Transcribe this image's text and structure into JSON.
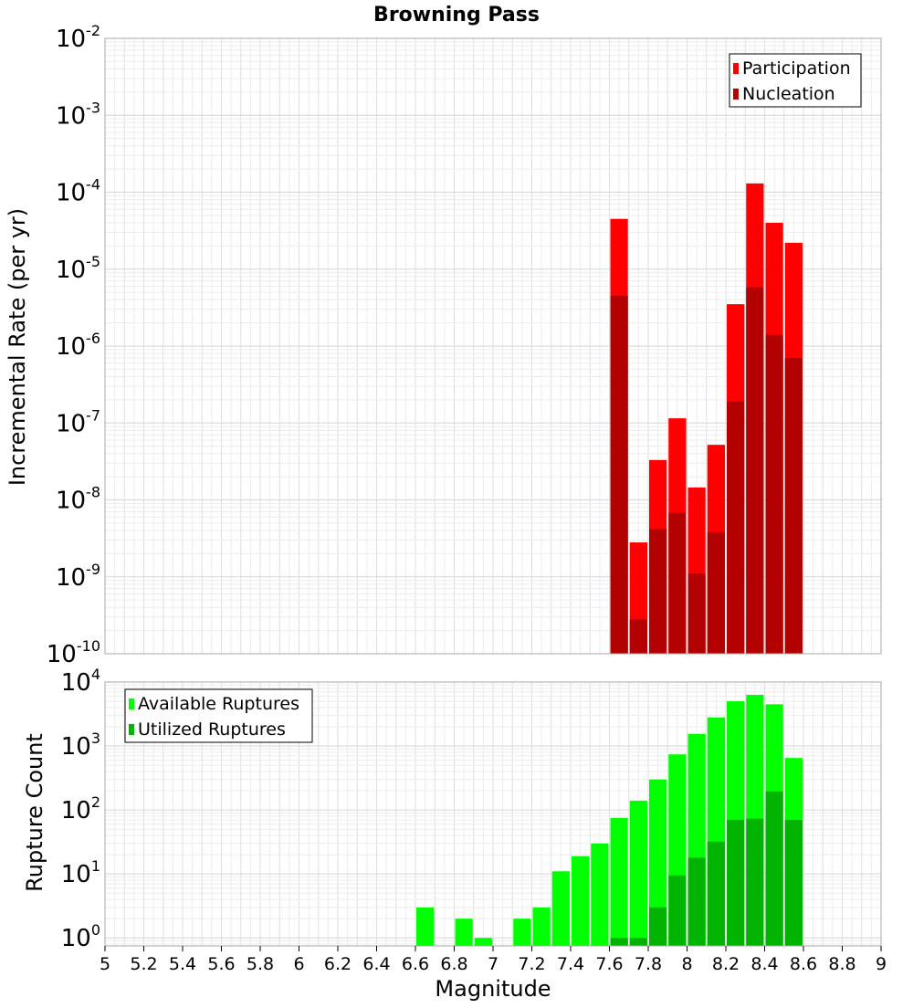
{
  "chart_data": [
    {
      "type": "bar",
      "title": "Browning Pass",
      "xlabel": "",
      "ylabel": "Incremental Rate (per yr)",
      "yscale": "log",
      "ylim": [
        1e-10,
        0.01
      ],
      "xlim": [
        5,
        9
      ],
      "bin_width": 0.1,
      "legend_position": "top-right",
      "grid": true,
      "y_ticks": [
        {
          "base": "10",
          "exp": "-2",
          "value": 0.01
        },
        {
          "base": "10",
          "exp": "-3",
          "value": 0.001
        },
        {
          "base": "10",
          "exp": "-4",
          "value": 0.0001
        },
        {
          "base": "10",
          "exp": "-5",
          "value": 1e-05
        },
        {
          "base": "10",
          "exp": "-6",
          "value": 1e-06
        },
        {
          "base": "10",
          "exp": "-7",
          "value": 1e-07
        },
        {
          "base": "10",
          "exp": "-8",
          "value": 1e-08
        },
        {
          "base": "10",
          "exp": "-9",
          "value": 1e-09
        },
        {
          "base": "10",
          "exp": "-10",
          "value": 1e-10
        }
      ],
      "series": [
        {
          "name": "Participation",
          "color": "#ff0000",
          "x": [
            7.65,
            7.75,
            7.85,
            7.95,
            8.05,
            8.15,
            8.25,
            8.35,
            8.45,
            8.55
          ],
          "values": [
            4.5e-05,
            2.8e-09,
            3.3e-08,
            1.15e-07,
            1.45e-08,
            5.2e-08,
            3.5e-06,
            0.00013,
            4e-05,
            2.2e-05
          ]
        },
        {
          "name": "Nucleation",
          "color": "#b30000",
          "x": [
            7.65,
            7.75,
            7.85,
            7.95,
            8.05,
            8.15,
            8.25,
            8.35,
            8.45,
            8.55
          ],
          "values": [
            4.5e-06,
            2.8e-10,
            4.2e-09,
            6.8e-09,
            1.1e-09,
            3.8e-09,
            1.9e-07,
            5.8e-06,
            1.4e-06,
            7e-07
          ]
        }
      ]
    },
    {
      "type": "bar",
      "title": "",
      "xlabel": "Magnitude",
      "ylabel": "Rupture Count",
      "yscale": "log",
      "ylim": [
        0.75,
        10000
      ],
      "xlim": [
        5,
        9
      ],
      "bin_width": 0.1,
      "legend_position": "top-left",
      "grid": true,
      "x_ticks": [
        "5",
        "5.2",
        "5.4",
        "5.6",
        "5.8",
        "6",
        "6.2",
        "6.4",
        "6.6",
        "6.8",
        "7",
        "7.2",
        "7.4",
        "7.6",
        "7.8",
        "8",
        "8.2",
        "8.4",
        "8.6",
        "8.8",
        "9"
      ],
      "y_ticks": [
        {
          "base": "10",
          "exp": "4",
          "value": 10000
        },
        {
          "base": "10",
          "exp": "3",
          "value": 1000
        },
        {
          "base": "10",
          "exp": "2",
          "value": 100
        },
        {
          "base": "10",
          "exp": "1",
          "value": 10
        },
        {
          "base": "10",
          "exp": "0",
          "value": 1
        }
      ],
      "series": [
        {
          "name": "Available Ruptures",
          "color": "#00ff00",
          "x": [
            6.65,
            6.85,
            6.95,
            7.15,
            7.25,
            7.35,
            7.45,
            7.55,
            7.65,
            7.75,
            7.85,
            7.95,
            8.05,
            8.15,
            8.25,
            8.35,
            8.45,
            8.55
          ],
          "values": [
            3,
            2,
            1,
            2,
            3,
            11,
            19,
            30,
            75,
            140,
            300,
            740,
            1550,
            2800,
            5000,
            6300,
            4500,
            650
          ]
        },
        {
          "name": "Utilized Ruptures",
          "color": "#00b300",
          "x": [
            7.65,
            7.75,
            7.85,
            7.95,
            8.05,
            8.15,
            8.25,
            8.35,
            8.45,
            8.55
          ],
          "values": [
            1,
            1,
            3,
            9.5,
            18,
            32,
            70,
            73,
            195,
            70
          ]
        }
      ]
    }
  ]
}
